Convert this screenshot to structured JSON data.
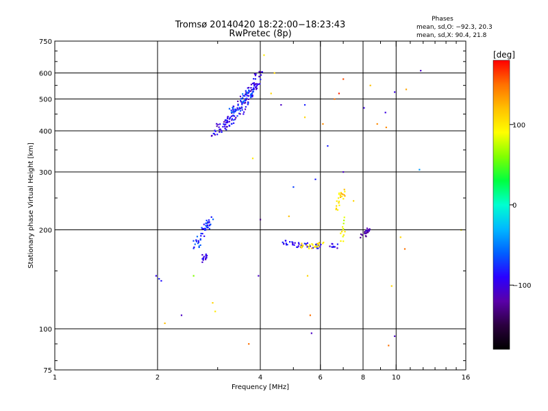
{
  "chart_data": {
    "type": "scatter",
    "title": "Tromsø 20140420 18:22:00−18:23:43",
    "subtitle": "RwPretec (8p)",
    "xlabel": "Frequency [MHz]",
    "ylabel": "Stationary phase Virtual Height [km]",
    "x_scale": "log",
    "y_scale": "log",
    "xlim": [
      1,
      16
    ],
    "ylim": [
      75,
      750
    ],
    "grid": true,
    "x_ticks": [
      1,
      2,
      4,
      6,
      8,
      10,
      16
    ],
    "x_tick_labels": [
      "1",
      "2",
      "4",
      "6",
      "8",
      "10",
      "16"
    ],
    "y_ticks": [
      75,
      100,
      200,
      300,
      400,
      500,
      600,
      750
    ],
    "y_tick_labels": [
      "75",
      "100",
      "200",
      "300",
      "400",
      "500",
      "600",
      "750"
    ],
    "x_grid": [
      2,
      4,
      6,
      8,
      10
    ],
    "y_grid": [
      100,
      200,
      300,
      400,
      500,
      600
    ],
    "colorbar": {
      "label": "[deg]",
      "range": [
        -180,
        180
      ],
      "ticks": [
        100,
        0,
        -100
      ],
      "tick_labels": [
        "100",
        "0",
        "−100"
      ],
      "colors": [
        "#000000",
        "#2b003f",
        "#5a00a8",
        "#2a00ff",
        "#0060ff",
        "#00b8ff",
        "#00ffd0",
        "#00ff40",
        "#80ff00",
        "#ffff00",
        "#ffc000",
        "#ff7000",
        "#ff0000"
      ]
    },
    "legend": {
      "title": "Phases",
      "lines": [
        "mean, sd,O: −92.3, 20.3",
        "mean, sd,X:  90.4, 21.8"
      ]
    },
    "clusters": [
      {
        "x": [
          2.9,
          3.2,
          3.5,
          3.8,
          4.0
        ],
        "y": [
          390,
          420,
          470,
          540,
          600
        ],
        "phase": -100,
        "n": 130,
        "spread": 0.05
      },
      {
        "x": [
          3.2,
          3.5,
          3.8
        ],
        "y": [
          430,
          480,
          530
        ],
        "phase": -70,
        "n": 60,
        "spread": 0.045
      },
      {
        "x": [
          2.6,
          2.75,
          2.85
        ],
        "y": [
          180,
          200,
          215
        ],
        "phase": -75,
        "n": 50,
        "spread": 0.04
      },
      {
        "x": [
          2.7,
          2.8
        ],
        "y": [
          160,
          170
        ],
        "phase": -100,
        "n": 14,
        "spread": 0.03
      },
      {
        "x": [
          4.6,
          5.0,
          5.5,
          6.0
        ],
        "y": [
          185,
          180,
          180,
          178
        ],
        "phase": -90,
        "n": 40,
        "spread": 0.02
      },
      {
        "x": [
          5.2,
          5.6,
          6.2
        ],
        "y": [
          180,
          178,
          182
        ],
        "phase": 105,
        "n": 24,
        "spread": 0.02
      },
      {
        "x": [
          6.6,
          6.85,
          7.0
        ],
        "y": [
          230,
          250,
          260
        ],
        "phase": 110,
        "n": 22,
        "spread": 0.03
      },
      {
        "x": [
          7.8,
          8.2,
          8.3
        ],
        "y": [
          190,
          195,
          200
        ],
        "phase": -120,
        "n": 24,
        "spread": 0.02
      },
      {
        "x": [
          6.9,
          7.0,
          7.1
        ],
        "y": [
          180,
          200,
          215
        ],
        "phase": 90,
        "n": 14,
        "spread": 0.03
      },
      {
        "x": [
          6.4,
          6.8
        ],
        "y": [
          180,
          178
        ],
        "phase": -95,
        "n": 10,
        "spread": 0.02
      }
    ],
    "points": [
      {
        "x": 1.98,
        "y": 145,
        "phase": -95
      },
      {
        "x": 2.02,
        "y": 142,
        "phase": -80
      },
      {
        "x": 2.05,
        "y": 140,
        "phase": -85
      },
      {
        "x": 2.1,
        "y": 104,
        "phase": 120
      },
      {
        "x": 2.35,
        "y": 110,
        "phase": -110
      },
      {
        "x": 2.55,
        "y": 145,
        "phase": 60
      },
      {
        "x": 2.9,
        "y": 120,
        "phase": 110
      },
      {
        "x": 2.95,
        "y": 113,
        "phase": 100
      },
      {
        "x": 3.7,
        "y": 90,
        "phase": 150
      },
      {
        "x": 3.8,
        "y": 330,
        "phase": 100
      },
      {
        "x": 3.95,
        "y": 145,
        "phase": -110
      },
      {
        "x": 4.0,
        "y": 215,
        "phase": -130
      },
      {
        "x": 4.1,
        "y": 680,
        "phase": 100
      },
      {
        "x": 4.3,
        "y": 520,
        "phase": 110
      },
      {
        "x": 4.4,
        "y": 600,
        "phase": 110
      },
      {
        "x": 4.6,
        "y": 480,
        "phase": -110
      },
      {
        "x": 4.85,
        "y": 220,
        "phase": 120
      },
      {
        "x": 5.0,
        "y": 270,
        "phase": -70
      },
      {
        "x": 5.4,
        "y": 480,
        "phase": -80
      },
      {
        "x": 5.4,
        "y": 440,
        "phase": 110
      },
      {
        "x": 5.5,
        "y": 145,
        "phase": 110
      },
      {
        "x": 5.6,
        "y": 110,
        "phase": 150
      },
      {
        "x": 5.65,
        "y": 97,
        "phase": -110
      },
      {
        "x": 5.8,
        "y": 285,
        "phase": -80
      },
      {
        "x": 6.1,
        "y": 420,
        "phase": 140
      },
      {
        "x": 6.3,
        "y": 360,
        "phase": -80
      },
      {
        "x": 6.6,
        "y": 500,
        "phase": 150
      },
      {
        "x": 6.8,
        "y": 520,
        "phase": 170
      },
      {
        "x": 7.0,
        "y": 300,
        "phase": -110
      },
      {
        "x": 7.0,
        "y": 575,
        "phase": 160
      },
      {
        "x": 7.5,
        "y": 245,
        "phase": 110
      },
      {
        "x": 8.05,
        "y": 470,
        "phase": -100
      },
      {
        "x": 8.4,
        "y": 550,
        "phase": 120
      },
      {
        "x": 8.8,
        "y": 420,
        "phase": 140
      },
      {
        "x": 9.3,
        "y": 455,
        "phase": -100
      },
      {
        "x": 9.35,
        "y": 410,
        "phase": 140
      },
      {
        "x": 9.5,
        "y": 89,
        "phase": 150
      },
      {
        "x": 9.7,
        "y": 135,
        "phase": 110
      },
      {
        "x": 9.9,
        "y": 95,
        "phase": -110
      },
      {
        "x": 9.9,
        "y": 525,
        "phase": -100
      },
      {
        "x": 10.6,
        "y": 175,
        "phase": 150
      },
      {
        "x": 10.7,
        "y": 535,
        "phase": 130
      },
      {
        "x": 11.7,
        "y": 305,
        "phase": -40
      },
      {
        "x": 11.8,
        "y": 610,
        "phase": -110
      },
      {
        "x": 15.5,
        "y": 200,
        "phase": 100
      },
      {
        "x": 10.3,
        "y": 190,
        "phase": 110
      }
    ]
  }
}
